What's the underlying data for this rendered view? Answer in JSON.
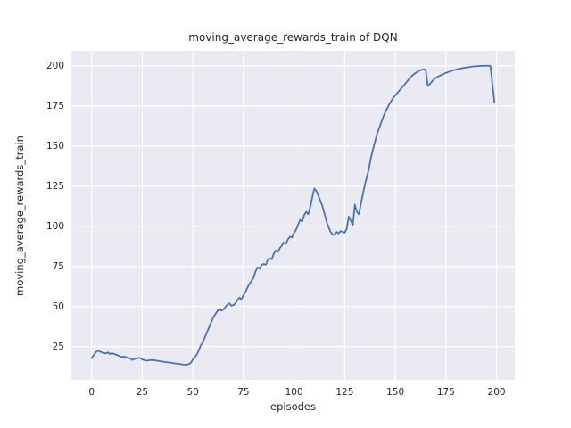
{
  "chart_data": {
    "type": "line",
    "title": "moving_average_rewards_train of DQN",
    "xlabel": "episodes",
    "ylabel": "moving_average_rewards_train",
    "x_is_episode_index": true,
    "y": [
      18,
      19.5,
      21.5,
      22.5,
      22,
      21.5,
      21,
      20.8,
      21.4,
      20.4,
      20.9,
      20.5,
      20,
      19.5,
      19,
      18.5,
      18.8,
      18.4,
      18,
      17.8,
      16.7,
      17.2,
      17.6,
      18,
      17.9,
      17,
      16.6,
      16.3,
      16.4,
      16.6,
      16.7,
      16.5,
      16.3,
      16.1,
      16,
      15.7,
      15.5,
      15.3,
      15.2,
      15,
      14.8,
      14.6,
      14.5,
      14.3,
      14.1,
      13.9,
      13.8,
      13.7,
      14.2,
      14.9,
      17,
      18.5,
      20.1,
      23,
      26,
      28,
      31,
      34,
      37,
      40,
      43,
      45,
      47,
      48.5,
      47.5,
      48,
      49.5,
      51,
      52,
      50.5,
      50.8,
      52,
      54,
      55.5,
      54.5,
      57,
      59,
      62,
      64,
      66,
      68,
      72,
      74.5,
      73.5,
      76,
      76.5,
      76,
      79,
      80,
      79.5,
      83,
      85,
      84,
      86.5,
      88,
      90,
      89,
      92,
      93.5,
      93,
      96,
      98,
      101,
      104,
      103,
      107,
      109,
      107.5,
      112,
      118,
      123.5,
      122,
      119,
      116,
      112.5,
      108,
      103,
      99.5,
      96.5,
      95,
      94.5,
      96.5,
      95.5,
      97,
      96.5,
      96,
      98.5,
      106,
      103.5,
      100.5,
      113.5,
      109,
      107.5,
      114,
      120,
      126,
      131,
      136,
      143,
      148,
      153,
      157.5,
      161,
      164.5,
      168,
      171,
      173.5,
      176,
      178,
      180,
      181.5,
      183,
      184.5,
      186,
      187.5,
      189,
      190.5,
      192,
      193.5,
      194.5,
      195.5,
      196.3,
      197,
      197.5,
      197.8,
      197.5,
      187.5,
      188.5,
      190,
      191.5,
      192.5,
      193.2,
      193.8,
      194.4,
      195,
      195.5,
      196,
      196.5,
      196.9,
      197.3,
      197.6,
      197.9,
      198.2,
      198.5,
      198.7,
      198.9,
      199.1,
      199.3,
      199.5,
      199.6,
      199.7,
      199.8,
      199.9,
      199.9,
      200,
      200,
      200,
      199.9,
      188,
      177
    ],
    "xticks": [
      0,
      25,
      50,
      75,
      100,
      125,
      150,
      175,
      200
    ],
    "yticks": [
      25,
      50,
      75,
      100,
      125,
      150,
      175,
      200
    ],
    "xlim": [
      -10,
      209
    ],
    "ylim": [
      4.3,
      209.3
    ],
    "grid": true,
    "legend": null,
    "colors": {
      "line": "#4C72B0",
      "axes_background": "#EAEAF2",
      "gridline": "#FFFFFF",
      "figure_background": "#FFFFFF",
      "text": "#262626"
    },
    "layout": {
      "figure_width": 640,
      "figure_height": 480,
      "axes_left": 80,
      "axes_top": 57,
      "axes_width": 497,
      "axes_height": 369,
      "line_width": 1.8,
      "grid_width": 1.2
    }
  }
}
